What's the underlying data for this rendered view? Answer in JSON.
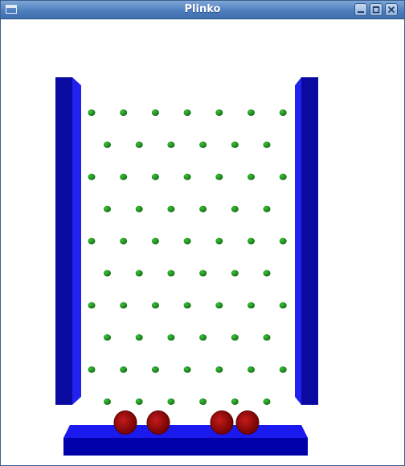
{
  "window": {
    "title": "Plinko",
    "app_icon": "window-icon",
    "controls": {
      "minimize_icon": "minimize-icon",
      "maximize_icon": "maximize-icon",
      "close_icon": "close-icon"
    }
  },
  "colors": {
    "title_bar": "#4f7fbf",
    "wall_front": "#0a0aa0",
    "wall_side": "#2222ee",
    "peg": "#0f6e12",
    "peg_highlight": "#3fbf3a",
    "chip": "#7a0000",
    "chip_highlight": "#c41a1a",
    "base_top": "#1a1aee",
    "base_front": "#0000aa"
  },
  "board": {
    "peg_rows": 10,
    "pegs_per_long_row": 7,
    "pegs_per_short_row": 6,
    "chips": 4
  }
}
